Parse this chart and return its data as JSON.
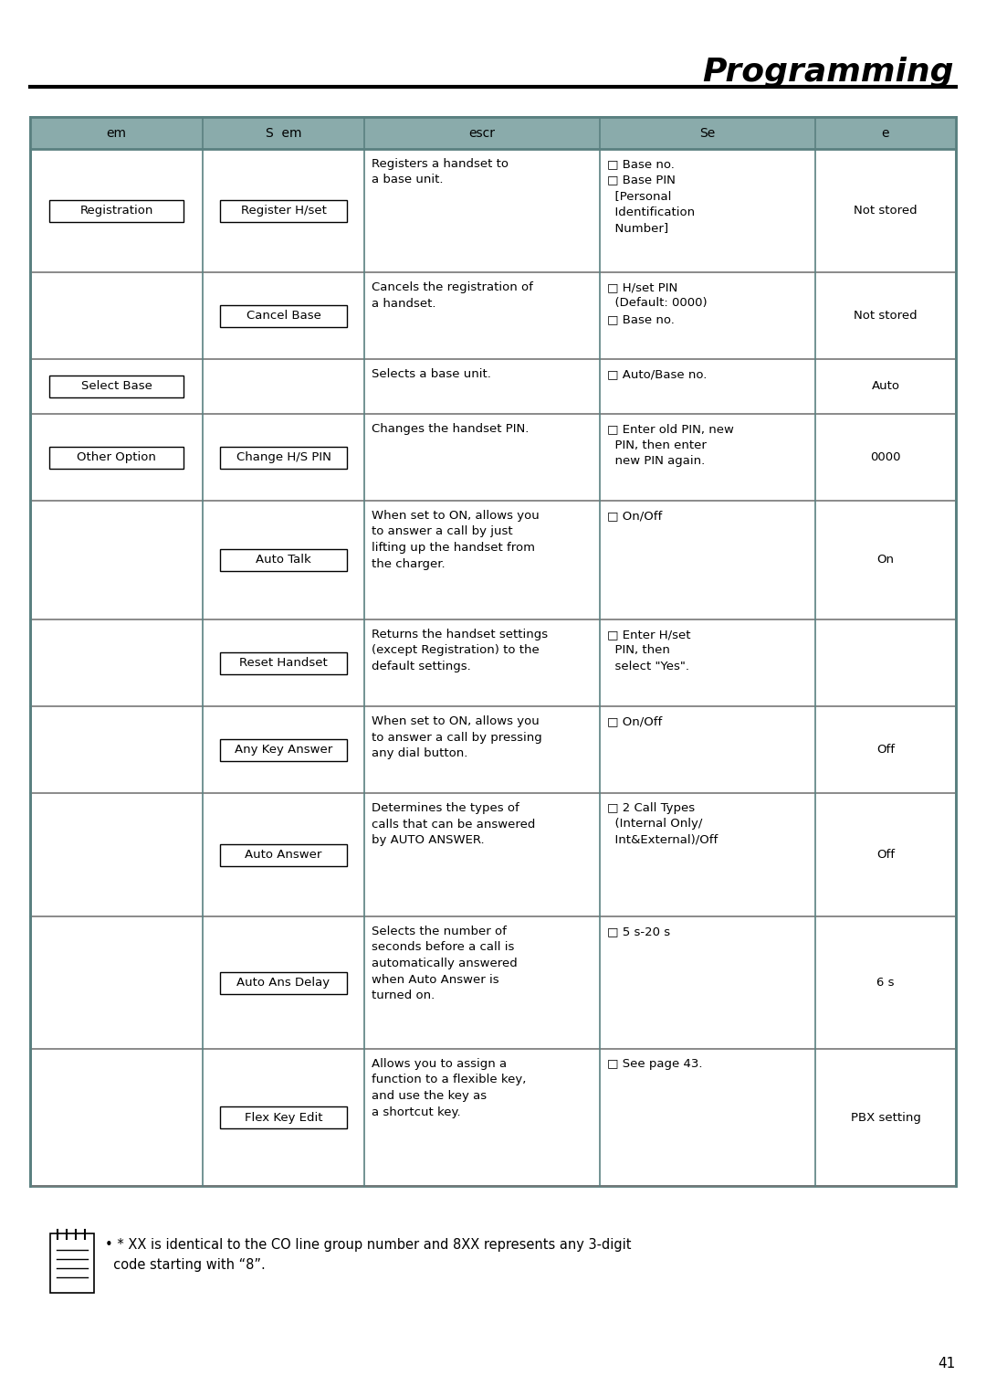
{
  "title": "Programming",
  "page_number": "41",
  "bg_color": "#ffffff",
  "header_bg": "#8aabab",
  "table_border_color": "#5a8080",
  "header_row": [
    "em",
    "S  em",
    "escr",
    "Se",
    "e"
  ],
  "note_text1": "• * XX is identical to the CO line group number and 8XX represents any 3-digit",
  "note_text2": "  code starting with “8”.",
  "rows": [
    {
      "col0": "Registration",
      "col1": "Register H/set",
      "col2": "Registers a handset to\na base unit.",
      "col3": "□ Base no.\n□ Base PIN\n  [Personal\n  Identification\n  Number]",
      "col4": "Not stored"
    },
    {
      "col0": "",
      "col1": "Cancel Base",
      "col2": "Cancels the registration of\na handset.",
      "col3": "□ H/set PIN\n  (Default: 0000)\n□ Base no.",
      "col4": "Not stored"
    },
    {
      "col0": "Select Base",
      "col1": "",
      "col2": "Selects a base unit.",
      "col3": "□ Auto/Base no.",
      "col4": "Auto"
    },
    {
      "col0": "Other Option",
      "col1": "Change H/S PIN",
      "col2": "Changes the handset PIN.",
      "col3": "□ Enter old PIN, new\n  PIN, then enter\n  new PIN again.",
      "col4": "0000"
    },
    {
      "col0": "",
      "col1": "Auto Talk",
      "col2": "When set to ON, allows you\nto answer a call by just\nlifting up the handset from\nthe charger.",
      "col3": "□ On/Off",
      "col4": "On"
    },
    {
      "col0": "",
      "col1": "Reset Handset",
      "col2": "Returns the handset settings\n(except Registration) to the\ndefault settings.",
      "col3": "□ Enter H/set\n  PIN, then\n  select \"Yes\".",
      "col4": ""
    },
    {
      "col0": "",
      "col1": "Any Key Answer",
      "col2": "When set to ON, allows you\nto answer a call by pressing\nany dial button.",
      "col3": "□ On/Off",
      "col4": "Off"
    },
    {
      "col0": "",
      "col1": "Auto Answer",
      "col2": "Determines the types of\ncalls that can be answered\nby AUTO ANSWER.",
      "col3": "□ 2 Call Types\n  (Internal Only/\n  Int&External)/Off",
      "col4": "Off"
    },
    {
      "col0": "",
      "col1": "Auto Ans Delay",
      "col2": "Selects the number of\nseconds before a call is\nautomatically answered\nwhen Auto Answer is\nturned on.",
      "col3": "□ 5 s-20 s",
      "col4": "6 s"
    },
    {
      "col0": "",
      "col1": "Flex Key Edit",
      "col2": "Allows you to assign a\nfunction to a flexible key,\nand use the key as\na shortcut key.",
      "col3": "□ See page 43.",
      "col4": "PBX setting"
    }
  ]
}
